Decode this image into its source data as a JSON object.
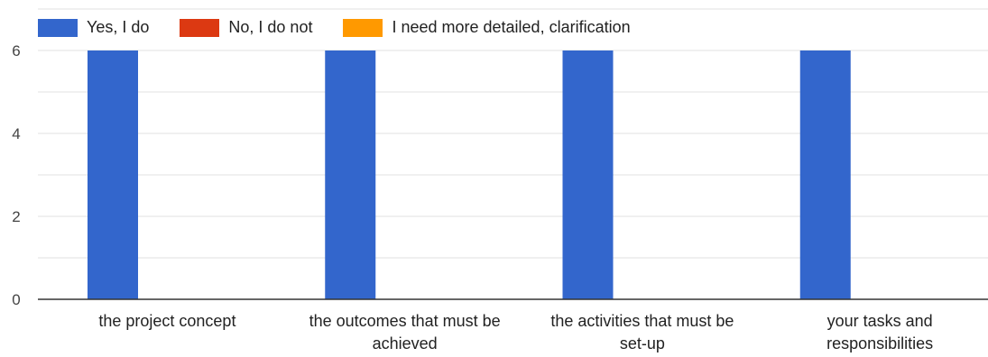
{
  "chart_data": {
    "type": "bar",
    "categories": [
      [
        "the project concept"
      ],
      [
        "the outcomes that must be",
        "achieved"
      ],
      [
        "the activities that must be",
        "set-up"
      ],
      [
        "your tasks and",
        "responsibilities"
      ]
    ],
    "series": [
      {
        "name": "Yes, I do",
        "color": "#3366cc",
        "values": [
          6,
          6,
          6,
          6
        ]
      },
      {
        "name": "No, I do not",
        "color": "#dc3912",
        "values": [
          0,
          0,
          0,
          0
        ]
      },
      {
        "name": "I need more detailed, clarification",
        "color": "#ff9900",
        "values": [
          0,
          0,
          0,
          0
        ]
      }
    ],
    "yticks": [
      0,
      2,
      4,
      6
    ],
    "ylim": [
      0,
      6.5
    ],
    "grid": true,
    "legend_position": "top"
  }
}
